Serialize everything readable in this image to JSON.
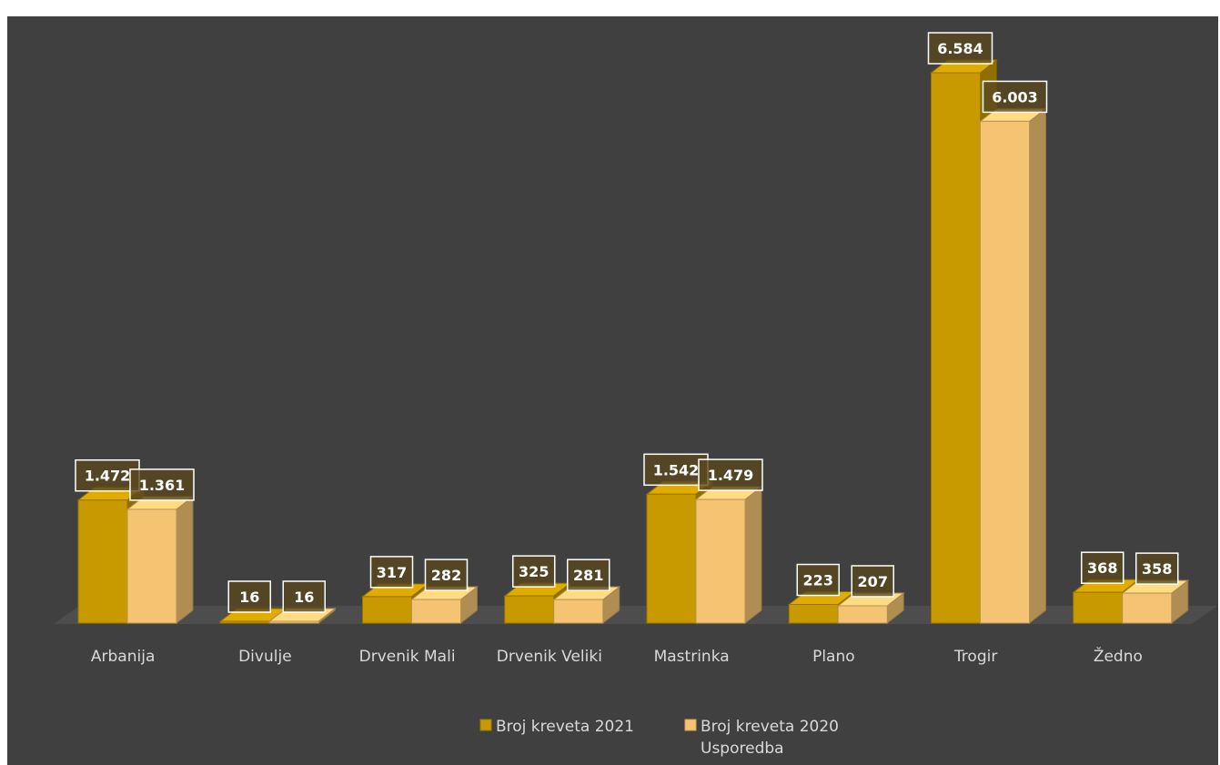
{
  "chart_data": {
    "type": "bar",
    "categories": [
      "Arbanija",
      "Divulje",
      "Drvenik Mali",
      "Drvenik Veliki",
      "Mastrinka",
      "Plano",
      "Trogir",
      "Žedno"
    ],
    "series": [
      {
        "name": "Broj kreveta 2021",
        "values": [
          1472,
          16,
          317,
          325,
          1542,
          223,
          6584,
          368
        ],
        "labels": [
          "1.472",
          "16",
          "317",
          "325",
          "1.542",
          "223",
          "6.584",
          "368"
        ],
        "color": "#c89a00"
      },
      {
        "name": "Broj kreveta 2020",
        "values": [
          1361,
          16,
          282,
          281,
          1479,
          207,
          6003,
          358
        ],
        "labels": [
          "1.361",
          "16",
          "282",
          "281",
          "1.479",
          "207",
          "6.003",
          "358"
        ],
        "color": "#f5c473"
      }
    ],
    "legend_extra": "Usporedba",
    "ylim": [
      0,
      6584
    ],
    "grid": false,
    "legend_position": "bottom",
    "background": "#404040"
  }
}
